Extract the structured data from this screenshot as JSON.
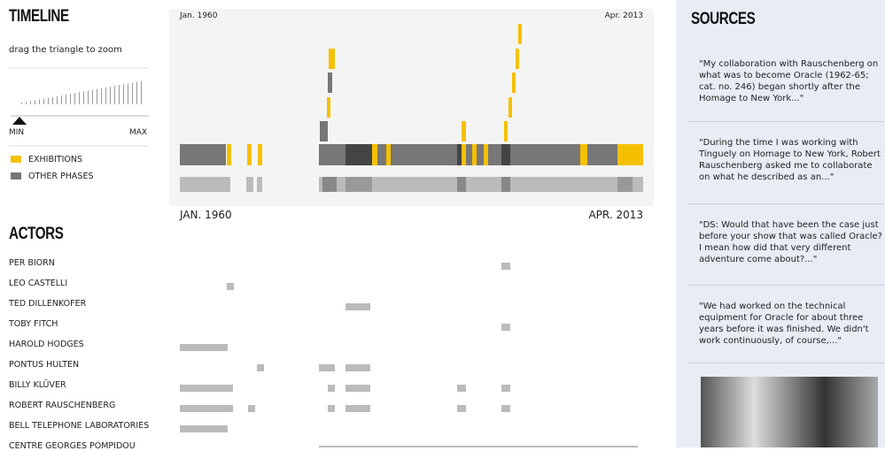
{
  "timeline": {
    "title": "TIMELINE",
    "hint": "drag the triangle to zoom",
    "min_label": "MIN",
    "max_label": "MAX",
    "legend": [
      "EXHIBITIONS",
      "OTHER PHASES"
    ],
    "start_small": "Jan. 1960",
    "end_small": "Apr. 2013",
    "start": "JAN. 1960",
    "end": "APR. 2013"
  },
  "actors": {
    "title": "ACTORS",
    "names": [
      "PER BIORN",
      "LEO CASTELLI",
      "TED DILLENKOFER",
      "TOBY FITCH",
      "HAROLD HODGES",
      "PONTUS HULTEN",
      "BILLY KLÜVER",
      "ROBERT RAUSCHENBERG",
      "BELL TELEPHONE LABORATORIES",
      "CENTRE GEORGES POMPIDOU"
    ]
  },
  "sources": {
    "title": "SOURCES",
    "quotes": [
      "\"My collaboration with Rauschenberg on what was to become Oracle (1962-65; cat. no. 246) began shortly after the Homage to New York...\"",
      "\"During the time I was working with Tinguely on Homage to New York, Robert Rauschenberg asked me to collaborate on what he described as an...\"",
      "\"DS: Would that have been the case just before your show that was called Oracle? I mean how did that very different adventure come about?...\"",
      "\"We had worked on the technical equipment for Oracle for about three years before it was finished. We didn't work continuously, of course,...\""
    ]
  }
}
